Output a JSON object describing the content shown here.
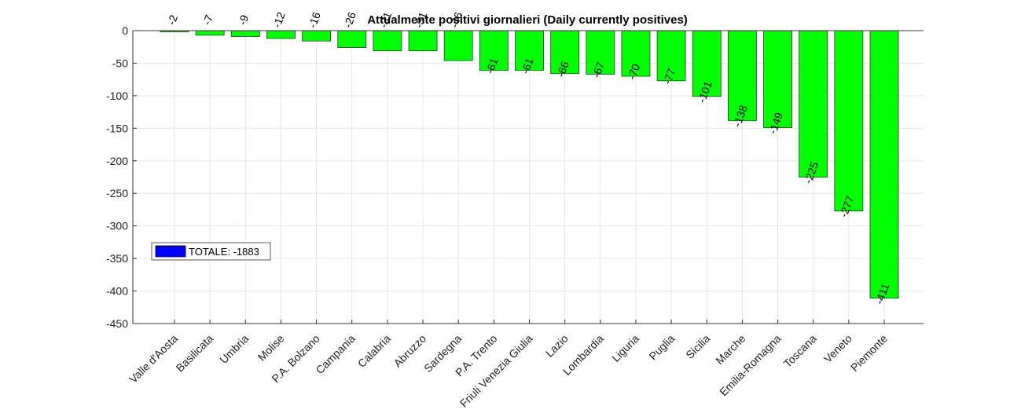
{
  "chart_data": {
    "type": "bar",
    "title": "Attualmente positivi giornalieri (Daily currently positives)",
    "xlabel": "",
    "ylabel": "",
    "categories": [
      "Valle d'Aosta",
      "Basilicata",
      "Umbria",
      "Molise",
      "P.A. Bolzano",
      "Campania",
      "Calabria",
      "Abruzzo",
      "Sardegna",
      "P.A. Trento",
      "Friuli Venezia Giulia",
      "Lazio",
      "Lombardia",
      "Liguria",
      "Puglia",
      "Sicilia",
      "Marche",
      "Emilia-Romagna",
      "Toscana",
      "Veneto",
      "Piemonte"
    ],
    "values": [
      -2,
      -7,
      -9,
      -12,
      -16,
      -26,
      -31,
      -31,
      -46,
      -61,
      -61,
      -66,
      -67,
      -70,
      -77,
      -101,
      -138,
      -149,
      -225,
      -277,
      -411
    ],
    "data_labels": [
      "-2",
      "-7",
      "-9",
      "-12",
      "-16",
      "-26",
      "-31",
      "-31",
      "-46",
      "-61",
      "-61",
      "-66",
      "-67",
      "-70",
      "-77",
      "-101",
      "-138",
      "-149",
      "-225",
      "-277",
      "-411"
    ],
    "ylim": [
      -450,
      0
    ],
    "yticks": [
      0,
      -50,
      -100,
      -150,
      -200,
      -250,
      -300,
      -350,
      -400,
      -450
    ],
    "ytick_labels": [
      "0",
      "-50",
      "-100",
      "-150",
      "-200",
      "-250",
      "-300",
      "-350",
      "-400",
      "-450"
    ],
    "grid": true,
    "bar_color": "#00ff00",
    "legend": {
      "placement": "middle-left",
      "label": "TOTALE: -1883",
      "swatch_color": "#0000ff"
    }
  }
}
